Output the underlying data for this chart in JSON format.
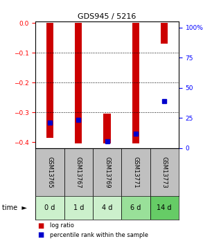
{
  "title": "GDS945 / 5216",
  "samples": [
    "GSM13765",
    "GSM13767",
    "GSM13769",
    "GSM13771",
    "GSM13773"
  ],
  "time_labels": [
    "0 d",
    "1 d",
    "4 d",
    "6 d",
    "14 d"
  ],
  "bar_bottoms": [
    -0.385,
    -0.405,
    -0.405,
    -0.405,
    -0.07
  ],
  "bar_tops": [
    0.0,
    0.0,
    -0.305,
    0.0,
    0.0
  ],
  "percentile_values": [
    -0.335,
    -0.325,
    -0.398,
    -0.372,
    -0.262
  ],
  "ylim_left": [
    -0.42,
    0.005
  ],
  "ylim_right": [
    0,
    105
  ],
  "yticks_left": [
    0,
    -0.1,
    -0.2,
    -0.3,
    -0.4
  ],
  "yticks_right_vals": [
    0,
    25,
    50,
    75,
    100
  ],
  "yticks_right_labels": [
    "0",
    "25",
    "50",
    "75",
    "100%"
  ],
  "bar_color": "#cc0000",
  "percentile_color": "#0000cc",
  "bg_plot": "#ffffff",
  "bg_sample_label": "#c0c0c0",
  "bg_time_colors": [
    "#ccf0cc",
    "#ccf0cc",
    "#ccf0cc",
    "#99e099",
    "#66cc66"
  ],
  "bar_width": 0.25,
  "percentile_marker_size": 5,
  "legend_red": "log ratio",
  "legend_blue": "percentile rank within the sample",
  "gridline_vals": [
    -0.1,
    -0.2,
    -0.3
  ],
  "title_fontsize": 8,
  "tick_fontsize": 6.5,
  "sample_fontsize": 6,
  "time_fontsize": 7
}
